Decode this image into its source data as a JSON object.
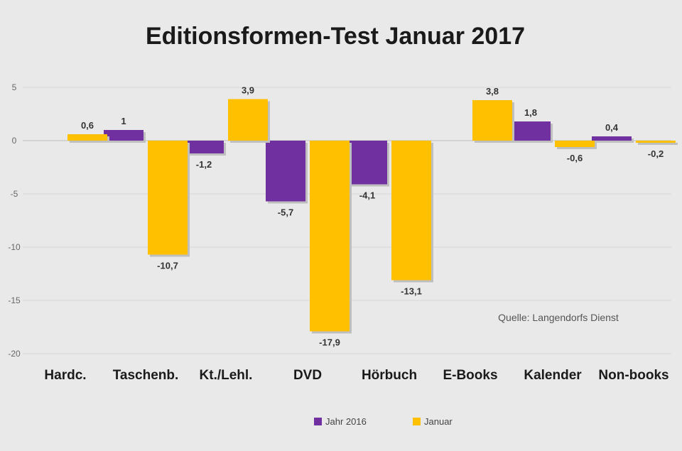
{
  "chart_data": {
    "type": "bar",
    "title": "Editionsformen-Test Januar 2017",
    "source": "Quelle: Langendorfs Dienst",
    "categories": [
      "Hardc.",
      "Taschenb.",
      "Kt./Lehl.",
      "DVD",
      "Hörbuch",
      "E-Books",
      "Kalender",
      "Non-books"
    ],
    "series": [
      {
        "name": "Jahr 2016",
        "color": "#7030a0",
        "values": [
          0,
          1,
          -1.2,
          -5.7,
          -4.1,
          0,
          1.8,
          0.4
        ]
      },
      {
        "name": "Januar",
        "color": "#ffc000",
        "values": [
          0.6,
          -10.7,
          3.9,
          -17.9,
          -13.1,
          3.8,
          -0.6,
          -0.2
        ]
      }
    ],
    "data_labels": [
      [
        "",
        "1",
        "-1,2",
        "-5,7",
        "-4,1",
        "",
        "1,8",
        "0,4"
      ],
      [
        "0,6",
        "-10,7",
        "3,9",
        "-17,9",
        "-13,1",
        "3,8",
        "-0,6",
        "-0,2"
      ]
    ],
    "yticks": [
      "5",
      "0",
      "-5",
      "-10",
      "-15",
      "-20"
    ],
    "ytick_values": [
      5,
      0,
      -5,
      -10,
      -15,
      -20
    ],
    "ylim": [
      -20,
      5
    ],
    "grid": true,
    "legend": "bottom-center",
    "xlabel": "",
    "ylabel": ""
  }
}
